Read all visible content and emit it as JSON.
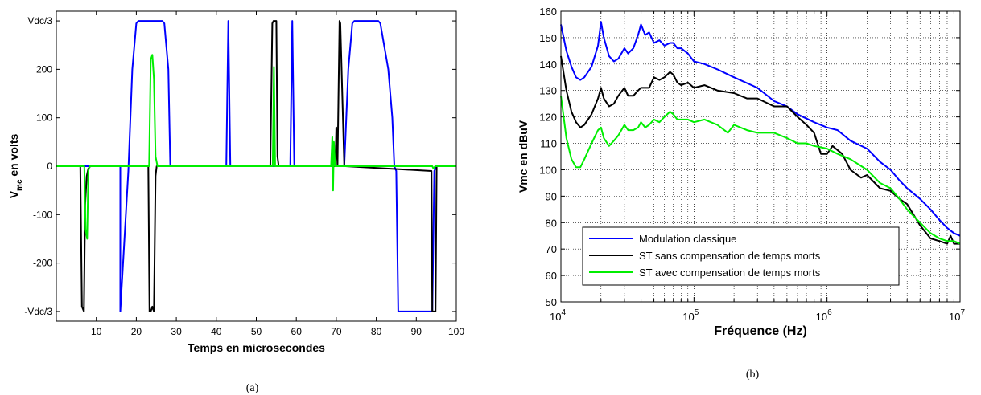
{
  "chart_data": [
    {
      "type": "line",
      "panel_caption": "(a)",
      "xlabel": "Temps en microsecondes",
      "ylabel": "V",
      "ylabel_sub": "mc",
      "ylabel_suffix": " en volts",
      "xlim": [
        0,
        100
      ],
      "ylim": [
        -320,
        320
      ],
      "x_ticks": [
        10,
        20,
        30,
        40,
        50,
        60,
        70,
        80,
        90,
        100
      ],
      "y_ticks": [
        {
          "value": 300,
          "label": "Vdc/3"
        },
        {
          "value": 200,
          "label": "200"
        },
        {
          "value": 100,
          "label": "100"
        },
        {
          "value": 0,
          "label": "0"
        },
        {
          "value": -100,
          "label": "-100"
        },
        {
          "value": -200,
          "label": "-200"
        },
        {
          "value": -300,
          "label": "-Vdc/3"
        }
      ],
      "grid": false,
      "series": [
        {
          "color": "#0000ff",
          "x": [
            0,
            16,
            16,
            18,
            19,
            20,
            20.5,
            26.5,
            27,
            28,
            28.5,
            42.5,
            43,
            43.5,
            58.5,
            59,
            59.5,
            72,
            73,
            74,
            74.5,
            80.5,
            81,
            83,
            84,
            84.5,
            85,
            85.5,
            94,
            94.5,
            95,
            100
          ],
          "y": [
            0,
            0,
            -300,
            -10,
            200,
            295,
            300,
            300,
            295,
            200,
            0,
            0,
            300,
            0,
            0,
            300,
            0,
            0,
            200,
            295,
            300,
            300,
            295,
            200,
            100,
            0,
            -10,
            -300,
            -300,
            -10,
            0,
            0
          ]
        },
        {
          "color": "#000000",
          "x": [
            0,
            6,
            6.4,
            6.9,
            7.2,
            7.6,
            8,
            8.5,
            23,
            23.3,
            23.6,
            24,
            24.4,
            24.8,
            25.1,
            53.5,
            54,
            54.3,
            55,
            55.3,
            55.6,
            69.8,
            70,
            70.3,
            70.8,
            71,
            72,
            72.3,
            93.8,
            94,
            94.3,
            94.8,
            95.1,
            100
          ],
          "y": [
            0,
            0,
            -290,
            -300,
            -80,
            -20,
            -5,
            0,
            0,
            -300,
            -300,
            -290,
            -300,
            -20,
            0,
            0,
            295,
            300,
            300,
            20,
            0,
            0,
            80,
            0,
            300,
            295,
            0,
            0,
            -10,
            -300,
            -300,
            -300,
            0,
            0
          ]
        },
        {
          "color": "#00ee00",
          "x": [
            0,
            7,
            7.3,
            7.7,
            8,
            8.3,
            23.2,
            23.6,
            24,
            24.4,
            24.8,
            25.3,
            54.1,
            54.4,
            54.7,
            68.7,
            69,
            69.2,
            69.4,
            69.7,
            70,
            94,
            94.3,
            94.7,
            100
          ],
          "y": [
            0,
            0,
            -130,
            -150,
            -10,
            0,
            0,
            220,
            230,
            180,
            20,
            0,
            0,
            205,
            0,
            0,
            60,
            -50,
            50,
            0,
            0,
            0,
            -5,
            0,
            0
          ]
        }
      ]
    },
    {
      "type": "line",
      "panel_caption": "(b)",
      "xlabel": "Fréquence (Hz)",
      "ylabel": "Vmc en dBuV",
      "xscale": "log",
      "xlim": [
        10000,
        10000000
      ],
      "ylim": [
        50,
        160
      ],
      "x_ticks": [
        {
          "value": 10000,
          "base": "10",
          "exp": "4"
        },
        {
          "value": 100000,
          "base": "10",
          "exp": "5"
        },
        {
          "value": 1000000,
          "base": "10",
          "exp": "6"
        },
        {
          "value": 10000000,
          "base": "10",
          "exp": "7"
        }
      ],
      "y_ticks": [
        50,
        60,
        70,
        80,
        90,
        100,
        110,
        120,
        130,
        140,
        150,
        160
      ],
      "grid": true,
      "legend_position": "lower-left",
      "series": [
        {
          "name": "Modulation classique",
          "color": "#0000ff",
          "x": [
            10000,
            11000,
            12000,
            13000,
            14000,
            15000,
            17000,
            19000,
            20000,
            21000,
            23000,
            25000,
            27000,
            30000,
            32000,
            35000,
            38000,
            40000,
            43000,
            46000,
            50000,
            55000,
            60000,
            66000,
            70000,
            75000,
            80000,
            90000,
            100000,
            120000,
            150000,
            200000,
            300000,
            400000,
            500000,
            600000,
            800000,
            1000000,
            1200000,
            1500000,
            2000000,
            2500000,
            3000000,
            3500000,
            4000000,
            5000000,
            6000000,
            7000000,
            8000000,
            9000000,
            10000000
          ],
          "y": [
            155,
            145,
            139,
            135,
            134,
            135,
            139,
            147,
            156,
            150,
            143,
            141,
            142,
            146,
            144,
            146,
            151,
            155,
            151,
            152,
            148,
            149,
            147,
            148,
            148,
            146,
            146,
            144,
            141,
            140,
            138,
            135,
            131,
            126,
            124,
            121,
            118,
            116,
            115,
            111,
            108,
            103,
            100,
            96,
            93,
            89,
            85,
            81,
            78,
            76,
            75
          ]
        },
        {
          "name": "ST sans compensation de temps morts",
          "color": "#000000",
          "x": [
            10000,
            11000,
            12000,
            13000,
            14000,
            15000,
            17000,
            19000,
            20000,
            21000,
            23000,
            25000,
            27000,
            30000,
            32000,
            35000,
            38000,
            40000,
            43000,
            46000,
            50000,
            55000,
            60000,
            66000,
            70000,
            75000,
            80000,
            90000,
            100000,
            120000,
            150000,
            200000,
            250000,
            300000,
            400000,
            500000,
            600000,
            700000,
            800000,
            900000,
            1000000,
            1100000,
            1300000,
            1500000,
            1800000,
            2000000,
            2500000,
            3000000,
            3500000,
            4000000,
            5000000,
            6000000,
            7000000,
            8000000,
            8500000,
            9000000,
            10000000
          ],
          "y": [
            143,
            130,
            122,
            118,
            116,
            117,
            121,
            127,
            131,
            127,
            124,
            125,
            128,
            131,
            128,
            128,
            130,
            131,
            131,
            131,
            135,
            134,
            135,
            137,
            136,
            133,
            132,
            133,
            131,
            132,
            130,
            129,
            127,
            127,
            124,
            124,
            120,
            117,
            114,
            106,
            106,
            109,
            106,
            100,
            97,
            98,
            93,
            92,
            89,
            87,
            79,
            74,
            73,
            72,
            75,
            72,
            72
          ]
        },
        {
          "name": "ST avec compensation de temps morts",
          "color": "#00ee00",
          "x": [
            10000,
            11000,
            12000,
            13000,
            14000,
            15000,
            17000,
            19000,
            20000,
            21000,
            23000,
            25000,
            27000,
            30000,
            32000,
            35000,
            38000,
            40000,
            43000,
            46000,
            50000,
            55000,
            60000,
            66000,
            70000,
            75000,
            80000,
            90000,
            100000,
            120000,
            150000,
            180000,
            200000,
            250000,
            300000,
            400000,
            500000,
            600000,
            700000,
            800000,
            1000000,
            1200000,
            1500000,
            2000000,
            2500000,
            3000000,
            3500000,
            4000000,
            5000000,
            6000000,
            7000000,
            8000000,
            9000000,
            10000000
          ],
          "y": [
            128,
            112,
            104,
            101,
            101,
            104,
            110,
            115,
            116,
            112,
            109,
            111,
            113,
            117,
            115,
            115,
            116,
            118,
            116,
            117,
            119,
            118,
            120,
            122,
            121,
            119,
            119,
            119,
            118,
            119,
            117,
            114,
            117,
            115,
            114,
            114,
            112,
            110,
            110,
            109,
            108,
            106,
            104,
            100,
            95,
            93,
            89,
            85,
            80,
            76,
            74,
            73,
            73,
            72
          ]
        }
      ]
    }
  ]
}
